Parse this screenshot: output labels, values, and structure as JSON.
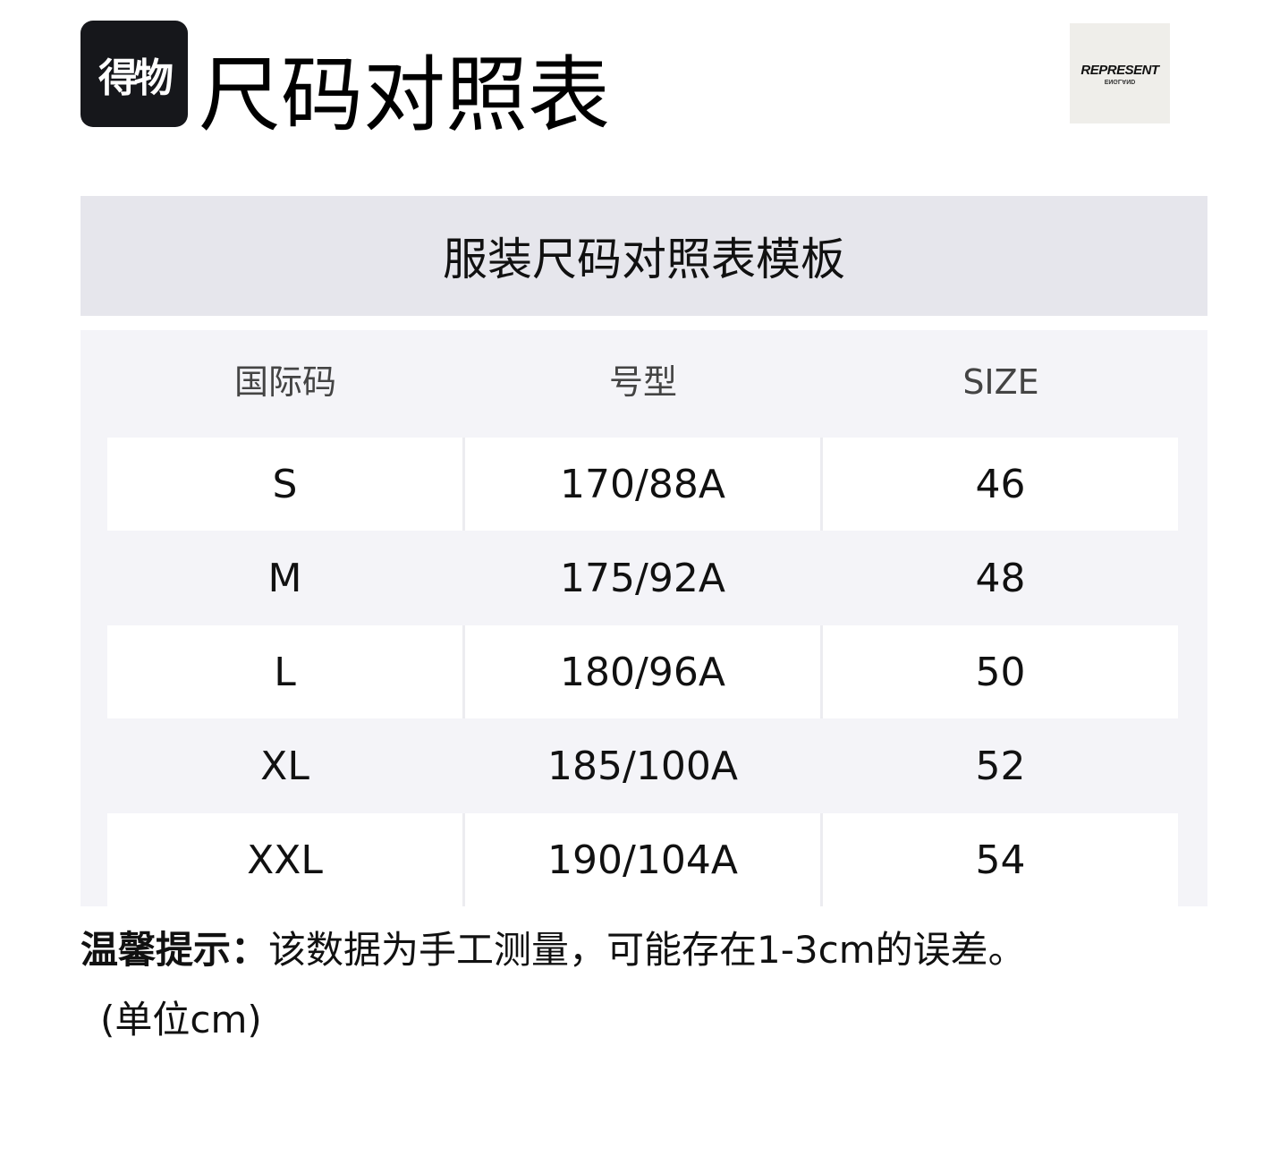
{
  "header": {
    "logo_text": "得物",
    "title": "尺码对照表",
    "brand_logo": {
      "line1": "REPRESENT",
      "line2": "ENGLAND"
    }
  },
  "banner": {
    "title": "服装尺码对照表模板"
  },
  "table": {
    "columns": [
      "国际码",
      "号型",
      "SIZE"
    ],
    "rows": [
      [
        "S",
        "170/88A",
        "46"
      ],
      [
        "M",
        "175/92A",
        "48"
      ],
      [
        "L",
        "180/96A",
        "50"
      ],
      [
        "XL",
        "185/100A",
        "52"
      ],
      [
        "XXL",
        "190/104A",
        "54"
      ]
    ]
  },
  "note": {
    "label": "温馨提示：",
    "text": "该数据为手工测量，可能存在1-3cm的误差。",
    "unit": "(单位cm)"
  }
}
